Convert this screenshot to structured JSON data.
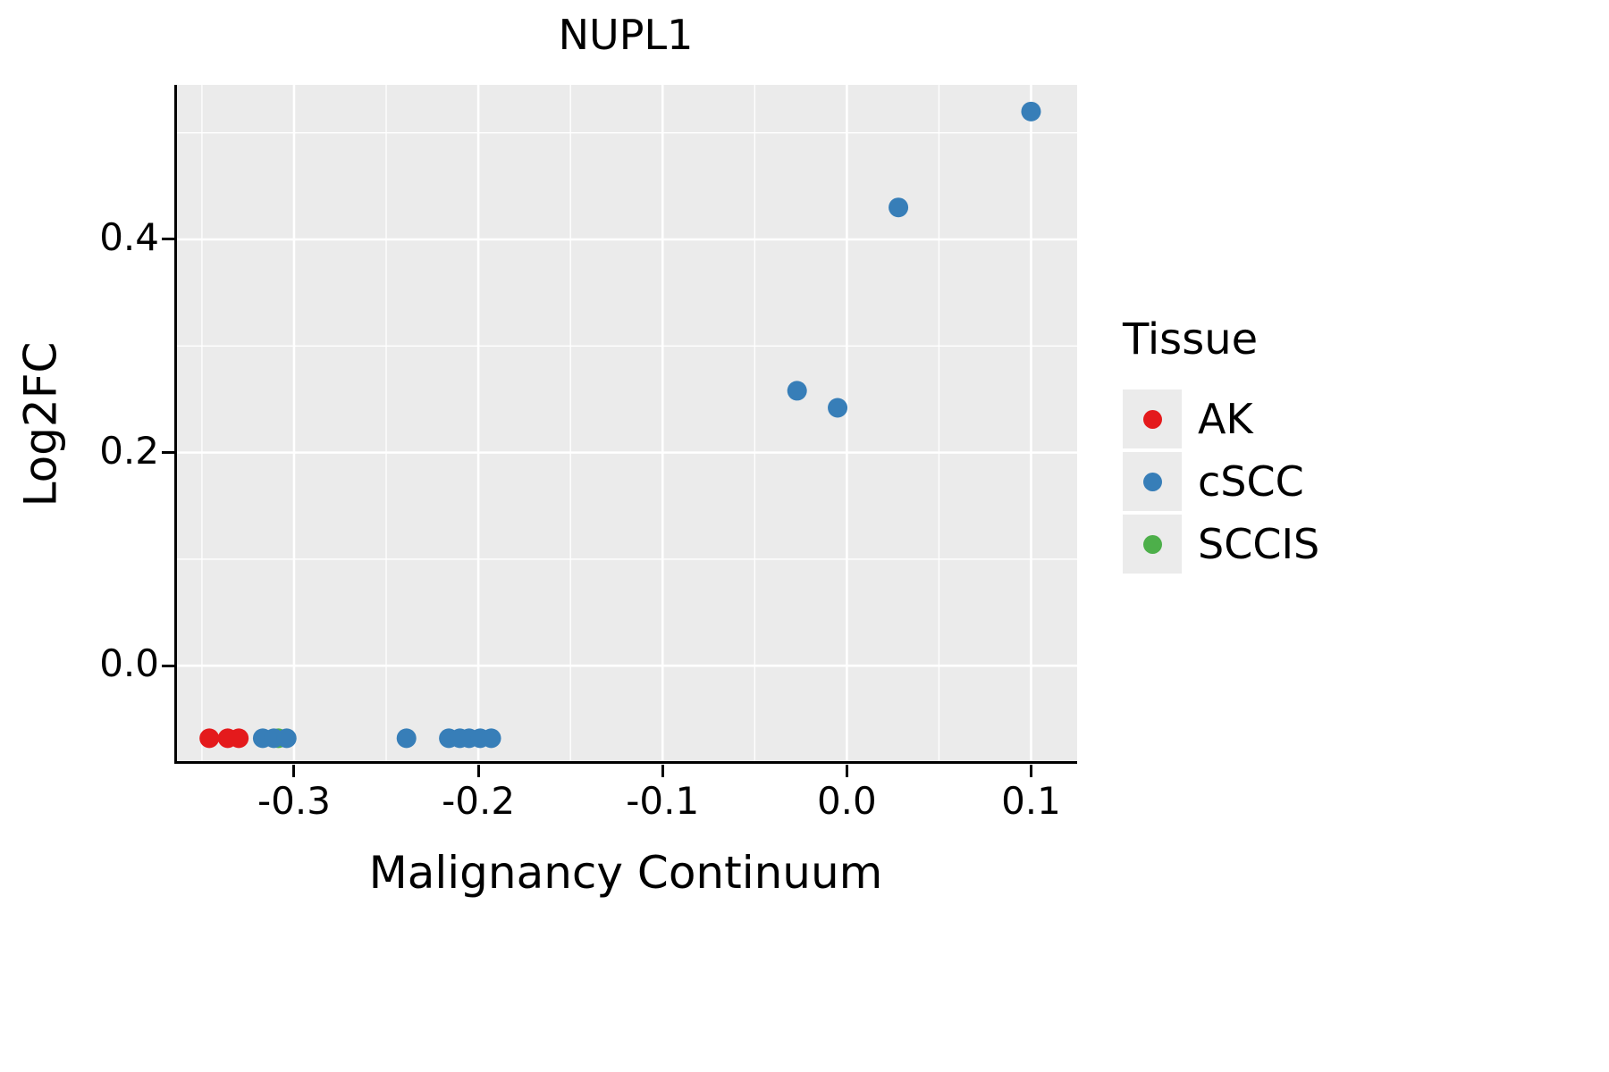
{
  "chart_data": {
    "type": "scatter",
    "title": "NUPL1",
    "xlabel": "Malignancy Continuum",
    "ylabel": "Log2FC",
    "xlim": [
      -0.365,
      0.125
    ],
    "ylim": [
      -0.092,
      0.545
    ],
    "x_ticks": [
      {
        "value": -0.3,
        "label": "-0.3"
      },
      {
        "value": -0.2,
        "label": "-0.2"
      },
      {
        "value": -0.1,
        "label": "-0.1"
      },
      {
        "value": 0.0,
        "label": "0.0"
      },
      {
        "value": 0.1,
        "label": "0.1"
      }
    ],
    "y_ticks": [
      {
        "value": 0.0,
        "label": "0.0"
      },
      {
        "value": 0.2,
        "label": "0.2"
      },
      {
        "value": 0.4,
        "label": "0.4"
      }
    ],
    "x_minor": [
      -0.35,
      -0.25,
      -0.15,
      -0.05,
      0.05
    ],
    "y_minor": [
      0.1,
      0.3,
      0.5
    ],
    "grid": true,
    "legend": {
      "title": "Tissue",
      "position": "right"
    },
    "colors": {
      "panel_bg": "#EBEBEB",
      "grid": "#FFFFFF",
      "axis": "#000000",
      "text": "#000000",
      "legend_key_bg": "#EBEBEB"
    },
    "point_radius": 11,
    "draw_order": [
      "AK",
      "SCCIS",
      "cSCC"
    ],
    "series": [
      {
        "name": "AK",
        "color": "#E41A1C",
        "points": [
          [
            -0.346,
            -0.068
          ],
          [
            -0.336,
            -0.068
          ],
          [
            -0.33,
            -0.068
          ]
        ]
      },
      {
        "name": "cSCC",
        "color": "#377EB8",
        "points": [
          [
            -0.317,
            -0.068
          ],
          [
            -0.311,
            -0.068
          ],
          [
            -0.304,
            -0.068
          ],
          [
            -0.239,
            -0.068
          ],
          [
            -0.216,
            -0.068
          ],
          [
            -0.21,
            -0.068
          ],
          [
            -0.205,
            -0.068
          ],
          [
            -0.199,
            -0.068
          ],
          [
            -0.193,
            -0.068
          ],
          [
            -0.027,
            0.258
          ],
          [
            -0.005,
            0.242
          ],
          [
            0.028,
            0.43
          ],
          [
            0.1,
            0.52
          ]
        ]
      },
      {
        "name": "SCCIS",
        "color": "#4DAF4A",
        "points": [
          [
            -0.3085,
            -0.068
          ]
        ]
      }
    ]
  }
}
